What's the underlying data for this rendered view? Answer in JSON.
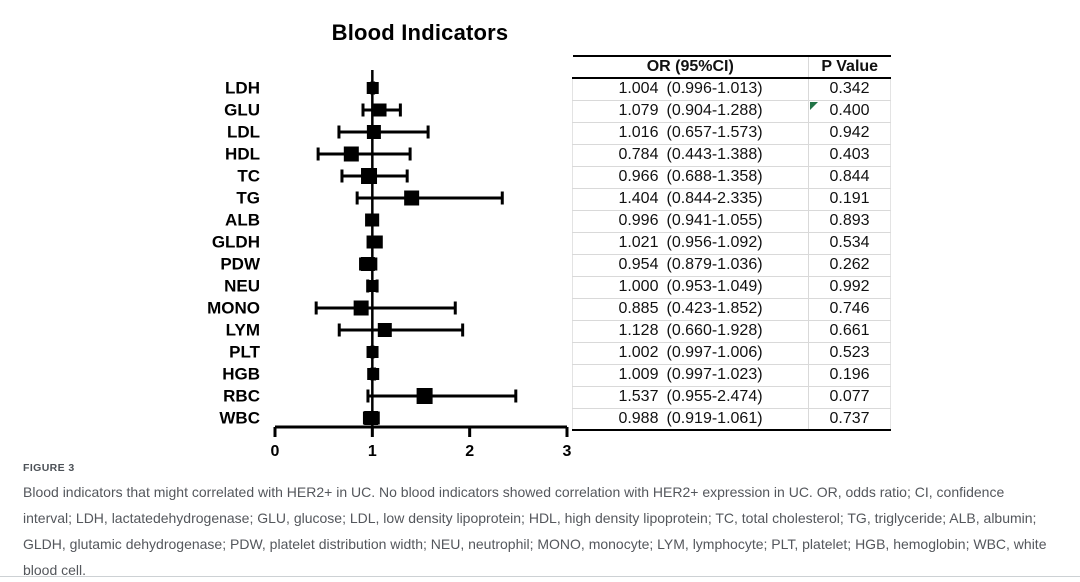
{
  "figure": {
    "caption_label": "FIGURE 3",
    "caption_text": "Blood indicators that might correlated with HER2+ in UC. No blood indicators showed correlation with HER2+ expression in UC. OR, odds ratio; CI, confidence interval; LDH, lactatedehydrogenase; GLU, glucose; LDL, low density lipoprotein; HDL, high density lipoprotein; TC, total cholesterol; TG, triglyceride; ALB, albumin; GLDH, glutamic dehydrogenase; PDW, platelet distribution width; NEU, neutrophil; MONO, monocyte; LYM, lymphocyte; PLT, platelet; HGB, hemoglobin; WBC, white blood cell."
  },
  "table": {
    "or_header": "OR (95%CI)",
    "p_header": "P Value",
    "flag_row_label": "GLU",
    "flag_color": "#217346"
  },
  "chart_data": {
    "type": "forest",
    "title": "Blood Indicators",
    "xlabel": "",
    "xlim": [
      0,
      3
    ],
    "xticks": [
      0,
      1,
      2,
      3
    ],
    "reference_line": 1,
    "marker_color": "#000000",
    "line_color": "#000000",
    "rows": [
      {
        "label": "LDH",
        "or": 1.004,
        "ci_low": 0.996,
        "ci_high": 1.013,
        "or_text": "1.004",
        "ci_text": "(0.996-1.013)",
        "p_text": "0.342",
        "marker_size": 12
      },
      {
        "label": "GLU",
        "or": 1.079,
        "ci_low": 0.904,
        "ci_high": 1.288,
        "or_text": "1.079",
        "ci_text": "(0.904-1.288)",
        "p_text": "0.400",
        "marker_size": 13
      },
      {
        "label": "LDL",
        "or": 1.016,
        "ci_low": 0.657,
        "ci_high": 1.573,
        "or_text": "1.016",
        "ci_text": "(0.657-1.573)",
        "p_text": "0.942",
        "marker_size": 14
      },
      {
        "label": "HDL",
        "or": 0.784,
        "ci_low": 0.443,
        "ci_high": 1.388,
        "or_text": "0.784",
        "ci_text": "(0.443-1.388)",
        "p_text": "0.403",
        "marker_size": 15
      },
      {
        "label": "TC",
        "or": 0.966,
        "ci_low": 0.688,
        "ci_high": 1.358,
        "or_text": "0.966",
        "ci_text": "(0.688-1.358)",
        "p_text": "0.844",
        "marker_size": 16
      },
      {
        "label": "TG",
        "or": 1.404,
        "ci_low": 0.844,
        "ci_high": 2.335,
        "or_text": "1.404",
        "ci_text": "(0.844-2.335)",
        "p_text": "0.191",
        "marker_size": 15
      },
      {
        "label": "ALB",
        "or": 0.996,
        "ci_low": 0.941,
        "ci_high": 1.055,
        "or_text": "0.996",
        "ci_text": "(0.941-1.055)",
        "p_text": "0.893",
        "marker_size": 13
      },
      {
        "label": "GLDH",
        "or": 1.021,
        "ci_low": 0.956,
        "ci_high": 1.092,
        "or_text": "1.021",
        "ci_text": "(0.956-1.092)",
        "p_text": "0.534",
        "marker_size": 13
      },
      {
        "label": "PDW",
        "or": 0.954,
        "ci_low": 0.879,
        "ci_high": 1.036,
        "or_text": "0.954",
        "ci_text": "(0.879-1.036)",
        "p_text": "0.262",
        "marker_size": 14
      },
      {
        "label": "NEU",
        "or": 1.0,
        "ci_low": 0.953,
        "ci_high": 1.049,
        "or_text": "1.000",
        "ci_text": "(0.953-1.049)",
        "p_text": "0.992",
        "marker_size": 12
      },
      {
        "label": "MONO",
        "or": 0.885,
        "ci_low": 0.423,
        "ci_high": 1.852,
        "or_text": "0.885",
        "ci_text": "(0.423-1.852)",
        "p_text": "0.746",
        "marker_size": 15
      },
      {
        "label": "LYM",
        "or": 1.128,
        "ci_low": 0.66,
        "ci_high": 1.928,
        "or_text": "1.128",
        "ci_text": "(0.660-1.928)",
        "p_text": "0.661",
        "marker_size": 14
      },
      {
        "label": "PLT",
        "or": 1.002,
        "ci_low": 0.997,
        "ci_high": 1.006,
        "or_text": "1.002",
        "ci_text": "(0.997-1.006)",
        "p_text": "0.523",
        "marker_size": 12
      },
      {
        "label": "HGB",
        "or": 1.009,
        "ci_low": 0.997,
        "ci_high": 1.023,
        "or_text": "1.009",
        "ci_text": "(0.997-1.023)",
        "p_text": "0.196",
        "marker_size": 12
      },
      {
        "label": "RBC",
        "or": 1.537,
        "ci_low": 0.955,
        "ci_high": 2.474,
        "or_text": "1.537",
        "ci_text": "(0.955-2.474)",
        "p_text": "0.077",
        "marker_size": 16
      },
      {
        "label": "WBC",
        "or": 0.988,
        "ci_low": 0.919,
        "ci_high": 1.061,
        "or_text": "0.988",
        "ci_text": "(0.919-1.061)",
        "p_text": "0.737",
        "marker_size": 14
      }
    ]
  }
}
